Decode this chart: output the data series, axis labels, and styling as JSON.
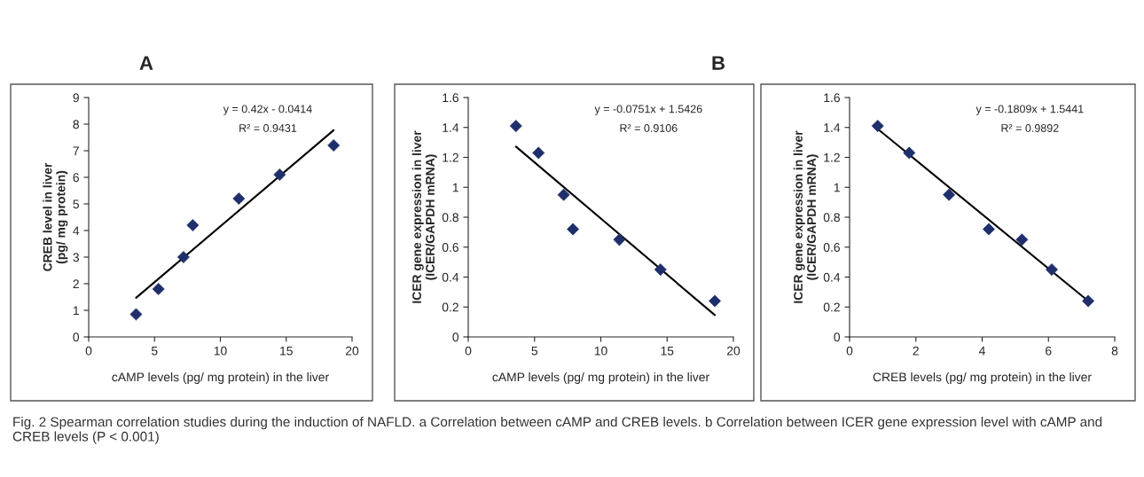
{
  "chart_data": [
    {
      "type": "scatter",
      "title": "A",
      "xlabel": "cAMP levels (pg/ mg protein) in the liver",
      "ylabel": "CREB level in liver\n(pg/ mg protein)",
      "series": [
        {
          "type": "scatter",
          "color": "#1f2f6b",
          "marker": "diamond",
          "x": [
            3.6,
            5.3,
            7.2,
            7.9,
            11.4,
            14.5,
            18.6
          ],
          "values": [
            0.85,
            1.8,
            3.0,
            4.2,
            5.2,
            6.1,
            7.2
          ]
        },
        {
          "type": "line",
          "color": "#000000",
          "x": [
            3.6,
            18.6
          ],
          "values": [
            1.47,
            7.77
          ]
        }
      ],
      "xlim": [
        0,
        20
      ],
      "xticks": [
        0,
        5,
        10,
        15,
        20
      ],
      "ylim": [
        0,
        9
      ],
      "yticks": [
        0,
        1,
        2,
        3,
        4,
        5,
        6,
        7,
        8,
        9
      ],
      "annotations": [
        "y = 0.42x - 0.0414",
        "R² = 0.9431"
      ]
    },
    {
      "type": "scatter",
      "title": "B",
      "xlabel": "cAMP levels (pg/ mg protein) in the liver",
      "ylabel": "ICER gene expression in liver\n(ICER/GAPDH mRNA)",
      "series": [
        {
          "type": "scatter",
          "color": "#1f2f6b",
          "marker": "diamond",
          "x": [
            3.6,
            5.3,
            7.2,
            7.9,
            11.4,
            14.5,
            18.6
          ],
          "values": [
            1.41,
            1.23,
            0.95,
            0.72,
            0.65,
            0.45,
            0.24
          ]
        },
        {
          "type": "line",
          "color": "#000000",
          "x": [
            3.6,
            18.6
          ],
          "values": [
            1.272,
            0.146
          ]
        }
      ],
      "xlim": [
        0,
        20
      ],
      "xticks": [
        0,
        5,
        10,
        15,
        20
      ],
      "ylim": [
        0,
        1.6
      ],
      "yticks": [
        0,
        0.2,
        0.4,
        0.6,
        0.8,
        {
          "value": 1,
          "label": "1"
        },
        1.2,
        1.4,
        1.6
      ],
      "annotations": [
        "y = -0.0751x + 1.5426",
        "R² = 0.9106"
      ]
    },
    {
      "type": "scatter",
      "xlabel": "CREB levels (pg/ mg protein) in the liver",
      "ylabel": "ICER gene expression in liver\n(ICER/GAPDH mRNA)",
      "series": [
        {
          "type": "scatter",
          "color": "#1f2f6b",
          "marker": "diamond",
          "x": [
            0.85,
            1.8,
            3.0,
            4.2,
            5.2,
            6.1,
            7.2
          ],
          "values": [
            1.41,
            1.23,
            0.95,
            0.72,
            0.65,
            0.45,
            0.24
          ]
        },
        {
          "type": "line",
          "color": "#000000",
          "x": [
            0.85,
            7.2
          ],
          "values": [
            1.39,
            0.24
          ]
        }
      ],
      "xlim": [
        0,
        8
      ],
      "xticks": [
        0,
        2,
        4,
        6,
        8
      ],
      "ylim": [
        0,
        1.6
      ],
      "yticks": [
        0,
        0.2,
        0.4,
        0.6,
        0.8,
        {
          "value": 1,
          "label": "1"
        },
        1.2,
        1.4,
        1.6
      ],
      "annotations": [
        "y = -0.1809x + 1.5441",
        "R² = 0.9892"
      ]
    },
    {
      "type": "other",
      "annotations": [
        "Fig. 2 Spearman correlation studies during the induction of NAFLD. a Correlation between cAMP and CREB levels. b Correlation between ICER gene expression level with cAMP and CREB levels (P < 0.001)"
      ]
    }
  ]
}
